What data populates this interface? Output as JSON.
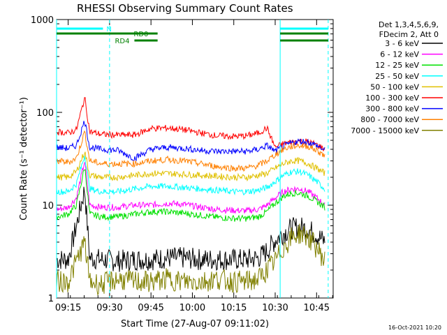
{
  "chart_data": {
    "type": "line",
    "title": "RHESSI Observing Summary Count Rates",
    "xlabel": "Start Time (27-Aug-07 09:11:02)",
    "ylabel": "Count Rate (s⁻¹ detector⁻¹)",
    "yscale": "log",
    "ylim": [
      1,
      1000
    ],
    "xlim": [
      9.18,
      10.85
    ],
    "x_ticks": [
      "09:15",
      "09:30",
      "09:45",
      "10:00",
      "10:15",
      "10:30",
      "10:45"
    ],
    "x_tick_values": [
      9.25,
      9.5,
      9.75,
      10.0,
      10.25,
      10.5,
      10.75
    ],
    "y_ticks": [
      "1",
      "10",
      "100",
      "1000"
    ],
    "y_tick_values": [
      1,
      10,
      100,
      1000
    ],
    "legend_header": [
      "Det 1,3,4,5,6,9,",
      "FDecim 2, Att 0"
    ],
    "legend_placement": "right",
    "series": [
      {
        "name": "3 - 6 keV",
        "color": "#000000",
        "x": [
          9.18,
          9.25,
          9.3,
          9.35,
          9.38,
          9.45,
          9.55,
          9.65,
          9.75,
          9.85,
          9.95,
          10.05,
          10.15,
          10.25,
          10.33,
          10.4,
          10.45,
          10.5,
          10.55,
          10.6,
          10.65,
          10.7,
          10.75,
          10.8
        ],
        "y": [
          2.6,
          2.6,
          6,
          15,
          2.7,
          2.6,
          2.5,
          2.6,
          2.6,
          2.7,
          2.7,
          2.6,
          2.6,
          2.6,
          2.6,
          2.7,
          3.2,
          4.2,
          5,
          5.6,
          5.8,
          5.5,
          4.8,
          4
        ]
      },
      {
        "name": "6 - 12 keV",
        "color": "#ff00ff",
        "x": [
          9.18,
          9.25,
          9.3,
          9.35,
          9.38,
          9.45,
          9.55,
          9.65,
          9.75,
          9.85,
          9.95,
          10.05,
          10.15,
          10.25,
          10.33,
          10.4,
          10.45,
          10.5,
          10.55,
          10.6,
          10.65,
          10.7,
          10.75,
          10.8
        ],
        "y": [
          9,
          9.5,
          12,
          30,
          10,
          9.5,
          9.5,
          10,
          10,
          10.5,
          10.2,
          9.5,
          9,
          8.8,
          8.7,
          9,
          10,
          12,
          14,
          15,
          15,
          14,
          12,
          10
        ]
      },
      {
        "name": "12 - 25 keV",
        "color": "#00e000",
        "x": [
          9.18,
          9.25,
          9.3,
          9.35,
          9.38,
          9.45,
          9.55,
          9.65,
          9.75,
          9.85,
          9.95,
          10.05,
          10.15,
          10.25,
          10.33,
          10.4,
          10.45,
          10.5,
          10.55,
          10.6,
          10.65,
          10.7,
          10.75,
          10.8
        ],
        "y": [
          7.5,
          8,
          10,
          26,
          8,
          7.5,
          7.5,
          8,
          8.5,
          8.5,
          8.2,
          7.8,
          7.4,
          7.2,
          7.2,
          7.5,
          8.5,
          10.5,
          12.5,
          13.5,
          13.5,
          12.5,
          11,
          9.5
        ]
      },
      {
        "name": "25 - 50 keV",
        "color": "#00ffff",
        "x": [
          9.18,
          9.25,
          9.3,
          9.35,
          9.38,
          9.45,
          9.55,
          9.65,
          9.75,
          9.85,
          9.95,
          10.05,
          10.15,
          10.25,
          10.33,
          10.4,
          10.45,
          10.5,
          10.55,
          10.6,
          10.65,
          10.7,
          10.75,
          10.8
        ],
        "y": [
          14,
          14,
          17,
          35,
          15,
          14,
          14,
          15,
          16,
          16,
          15.5,
          15,
          14.5,
          14,
          14,
          14.5,
          15.5,
          18,
          21,
          23,
          23,
          21,
          18,
          15
        ]
      },
      {
        "name": "50 - 100 keV",
        "color": "#e0c000",
        "x": [
          9.18,
          9.25,
          9.3,
          9.35,
          9.38,
          9.45,
          9.55,
          9.65,
          9.75,
          9.85,
          9.95,
          10.05,
          10.15,
          10.25,
          10.33,
          10.4,
          10.45,
          10.5,
          10.55,
          10.6,
          10.65,
          10.7,
          10.75,
          10.8
        ],
        "y": [
          20,
          20,
          23,
          38,
          21,
          20,
          20,
          21,
          22,
          22,
          21.5,
          21,
          20.5,
          20,
          20,
          21,
          22,
          25,
          28,
          30,
          30,
          28,
          25,
          22
        ]
      },
      {
        "name": "100 - 300 keV",
        "color": "#ff0000",
        "x": [
          9.18,
          9.25,
          9.3,
          9.35,
          9.38,
          9.45,
          9.55,
          9.65,
          9.75,
          9.85,
          9.95,
          10.05,
          10.15,
          10.25,
          10.33,
          10.4,
          10.45,
          10.5,
          10.55,
          10.6,
          10.65,
          10.7,
          10.75,
          10.8
        ],
        "y": [
          62,
          60,
          65,
          145,
          62,
          58,
          57,
          57,
          67,
          68,
          65,
          60,
          56,
          55,
          56,
          60,
          68,
          42,
          46,
          48,
          49,
          48,
          45,
          40
        ]
      },
      {
        "name": "300 - 800 keV",
        "color": "#0000ff",
        "x": [
          9.18,
          9.25,
          9.3,
          9.35,
          9.38,
          9.45,
          9.55,
          9.65,
          9.75,
          9.85,
          9.95,
          10.05,
          10.15,
          10.25,
          10.33,
          10.4,
          10.45,
          10.5,
          10.55,
          10.6,
          10.65,
          10.7,
          10.75,
          10.8
        ],
        "y": [
          42,
          41,
          44,
          82,
          42,
          40,
          39,
          32,
          40,
          42,
          41,
          39,
          38,
          38,
          38,
          40,
          44,
          38,
          43,
          47,
          49,
          48,
          44,
          39
        ]
      },
      {
        "name": "800 - 7000 keV",
        "color": "#ff8000",
        "x": [
          9.18,
          9.25,
          9.3,
          9.35,
          9.38,
          9.45,
          9.55,
          9.65,
          9.75,
          9.85,
          9.95,
          10.05,
          10.15,
          10.25,
          10.33,
          10.4,
          10.45,
          10.5,
          10.55,
          10.6,
          10.65,
          10.7,
          10.75,
          10.8
        ],
        "y": [
          30,
          29,
          32,
          62,
          30,
          28,
          28,
          28,
          30,
          31,
          30,
          28,
          26,
          25,
          25,
          27,
          30,
          35,
          40,
          43,
          44,
          43,
          39,
          34
        ]
      },
      {
        "name": "7000 - 15000 keV",
        "color": "#808000",
        "x": [
          9.18,
          9.25,
          9.3,
          9.35,
          9.38,
          9.45,
          9.55,
          9.65,
          9.75,
          9.85,
          9.95,
          10.05,
          10.15,
          10.25,
          10.33,
          10.4,
          10.45,
          10.5,
          10.55,
          10.6,
          10.65,
          10.7,
          10.75,
          10.8
        ],
        "y": [
          1.5,
          1.5,
          2.5,
          4,
          1.5,
          1.4,
          1.6,
          1.5,
          1.5,
          1.6,
          1.5,
          1.5,
          1.6,
          1.5,
          1.5,
          1.6,
          2,
          2.5,
          3.5,
          4.5,
          5,
          4.5,
          3.5,
          2.5
        ]
      }
    ],
    "flags": [
      {
        "name": "N",
        "color": "#00ffff",
        "segments": [
          [
            9.18,
            9.46
          ],
          [
            10.53,
            10.82
          ]
        ]
      },
      {
        "name": "RD0",
        "color": "#008000",
        "segments": [
          [
            9.18,
            9.79
          ],
          [
            10.53,
            10.82
          ]
        ]
      },
      {
        "name": "RD4",
        "color": "#008000",
        "segments": [
          [
            9.65,
            9.79
          ],
          [
            10.53,
            10.82
          ]
        ]
      }
    ],
    "v_lines": [
      {
        "x": 9.18,
        "style": "solid",
        "color": "#00ffff"
      },
      {
        "x": 9.5,
        "style": "dashed",
        "color": "#00ffff"
      },
      {
        "x": 10.53,
        "style": "solid",
        "color": "#00ffff"
      },
      {
        "x": 10.82,
        "style": "dashed",
        "color": "#00ffff"
      }
    ]
  },
  "footer": {
    "timestamp": "16-Oct-2021 10:20"
  }
}
